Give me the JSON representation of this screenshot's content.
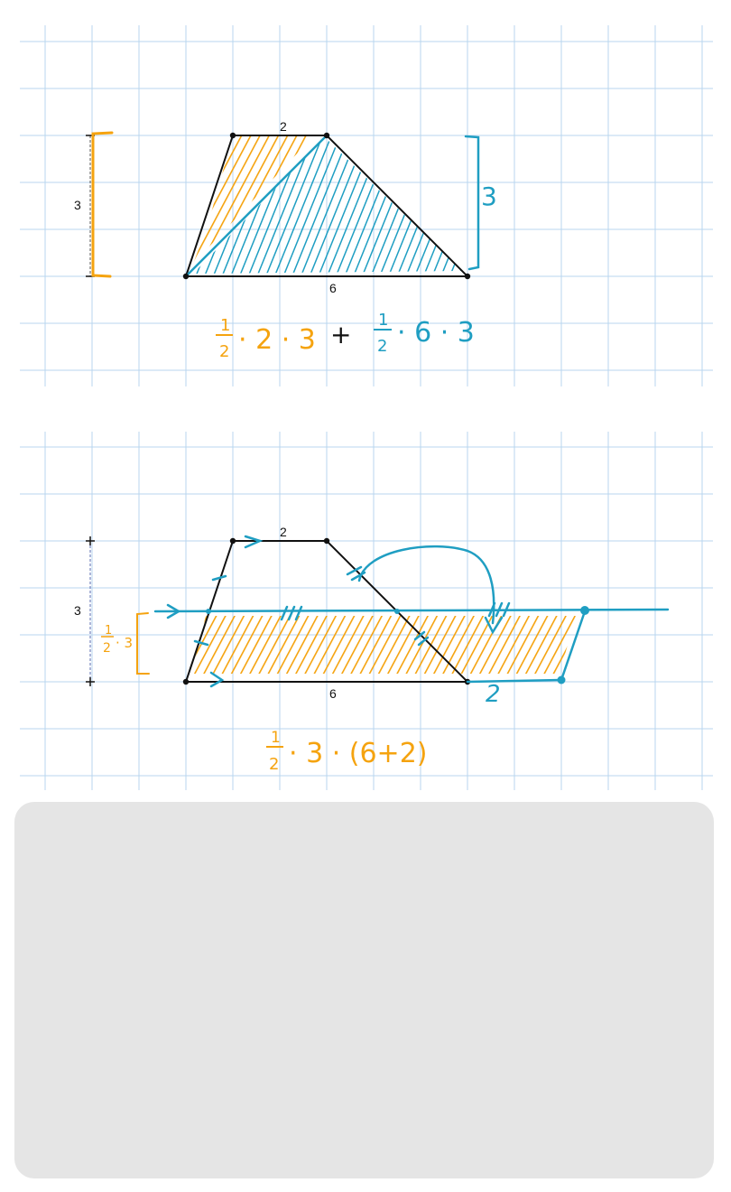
{
  "top_figure": {
    "labels": {
      "top_base": "2",
      "bottom_base": "6",
      "height": "3",
      "blue_height": "3"
    },
    "expression": {
      "orange_fraction_num": "1",
      "orange_fraction_den": "2",
      "orange_rest": "· 2 · 3",
      "plus": "+",
      "blue_fraction_num": "1",
      "blue_fraction_den": "2",
      "blue_rest": "· 6 · 3"
    }
  },
  "bottom_figure": {
    "labels": {
      "top_base": "2",
      "bottom_base": "6",
      "height": "3",
      "extension": "2"
    },
    "half_height": {
      "num": "1",
      "den": "2",
      "rest": "· 3"
    },
    "expression": {
      "num": "1",
      "den": "2",
      "rest": "· 3 · (6+2)"
    }
  },
  "colors": {
    "grid": "#b9d5ef",
    "orange": "#f5a30f",
    "blue": "#1f9ec2",
    "answer_box": "#e5e5e5"
  }
}
